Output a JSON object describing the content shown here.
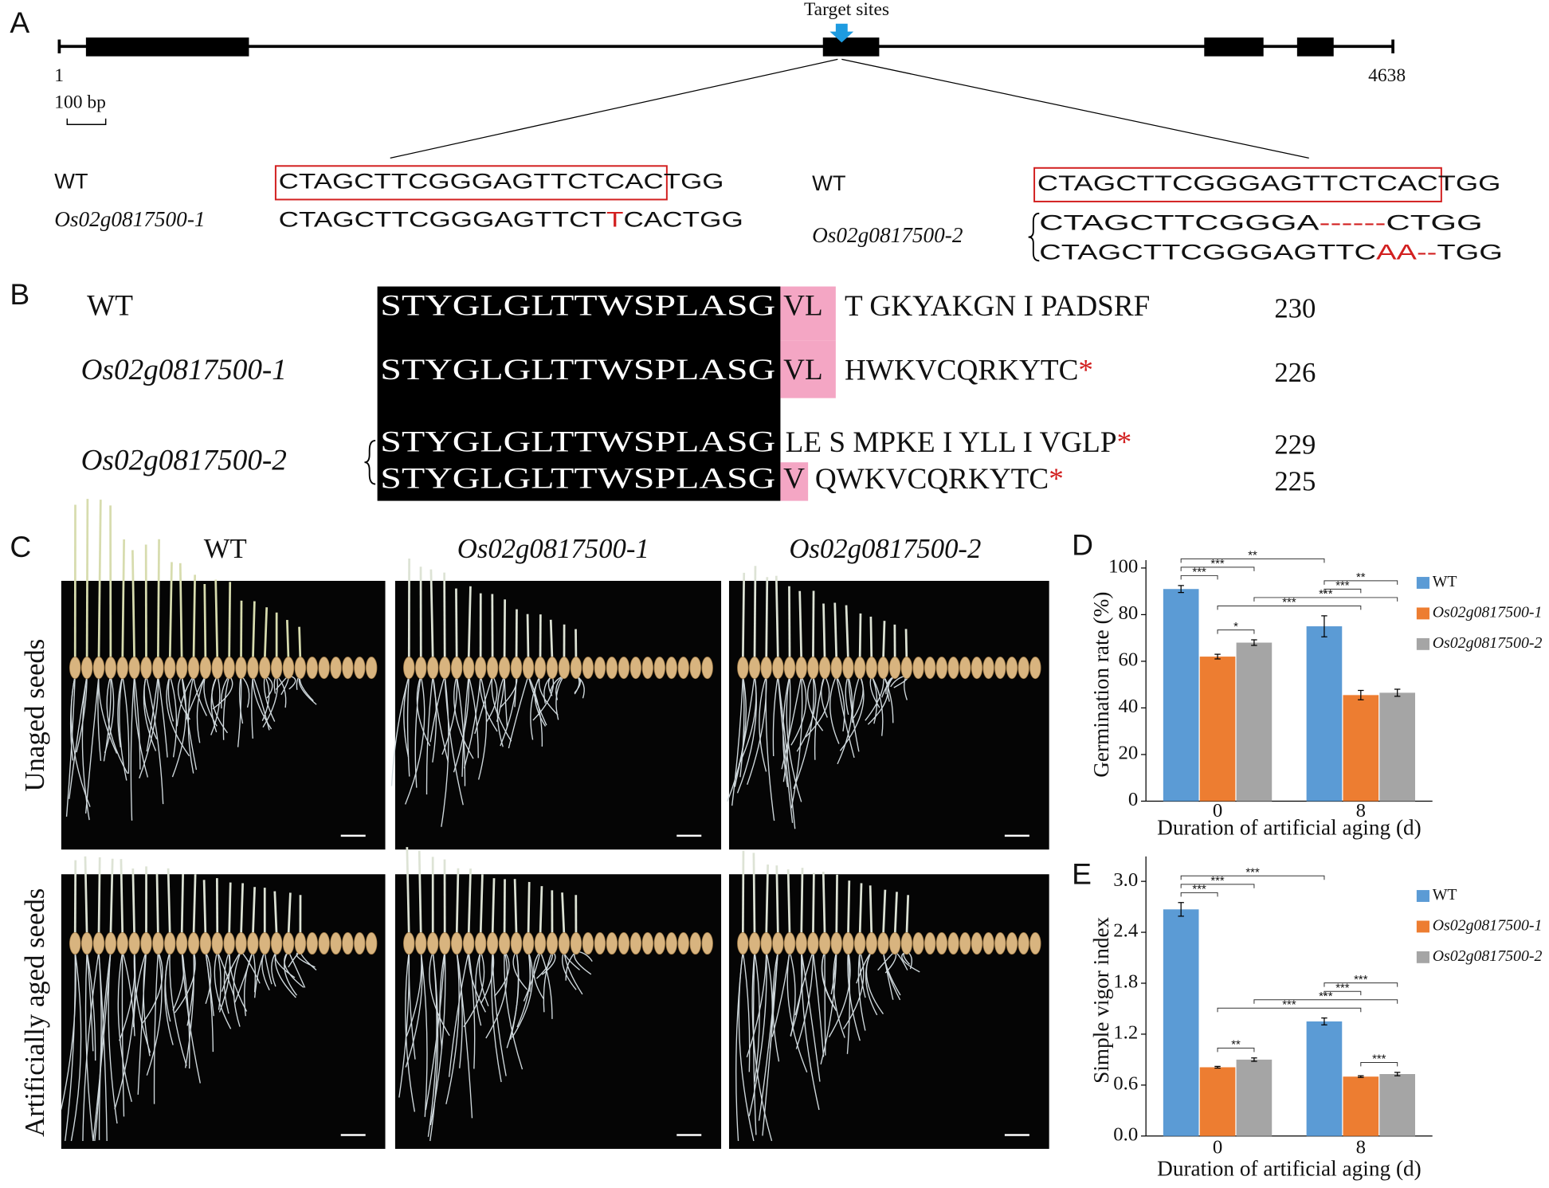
{
  "panel_a": {
    "label": "A",
    "target_label": "Target sites",
    "start": "1",
    "end": "4638",
    "scale": "100 bp",
    "left": {
      "wt_label": "WT",
      "wt_box": "CTAGCTTCGGGAGTTCTCAC",
      "wt_pam": "TGG",
      "mut_label": "Os02g0817500-1",
      "mut_parts": [
        "CTAGCTTCGGGAGTTCT",
        "T",
        "CACTGG"
      ]
    },
    "right": {
      "wt_label": "WT",
      "wt_box": "CTAGCTTCGGGAGTTCTCAC",
      "wt_pam": "TGG",
      "mut_label": "Os02g0817500-2",
      "allele1": [
        "CTAGCTTCGGGA",
        "------",
        "CTGG"
      ],
      "allele2": [
        "CTAGCTTCGGGAGTTC",
        "AA",
        "--",
        "TGG"
      ]
    }
  },
  "panel_b": {
    "label": "B",
    "rows": [
      {
        "name": "WT",
        "seqs": [
          {
            "conserved": "STYGLGLTTWSPLASG",
            "highlight": "VL",
            "rest": "T GKYAKGN I PADSRF",
            "length": 230
          }
        ]
      },
      {
        "name": "Os02g0817500-1",
        "seqs": [
          {
            "conserved": "STYGLGLTTWSPLASG",
            "highlight": "VL",
            "rest": "HWKVCQRKYTC",
            "stop": "*",
            "length": 226
          }
        ]
      },
      {
        "name": "Os02g0817500-2",
        "seqs": [
          {
            "conserved": "STYGLGLTTWSPLASG",
            "rest": "LE S MPKE I YLL I VGLP",
            "stop": "*",
            "length": 229
          },
          {
            "conserved": "STYGLGLTTWSPLASG",
            "highlight": "V",
            "rest": "QWKVCQRKYTC",
            "stop": "*",
            "length": 225
          }
        ]
      }
    ]
  },
  "panel_c": {
    "label": "C",
    "columns": [
      "WT",
      "Os02g0817500-1",
      "Os02g0817500-2"
    ],
    "rows": [
      "Unaged seeds",
      "Artificially aged seeds"
    ]
  },
  "chart_data": [
    {
      "type": "bar",
      "panel_label": "D",
      "x_label": "Duration of artificial aging (d)",
      "y_label": "Germination rate (%)",
      "categories": [
        "0",
        "8"
      ],
      "series": [
        {
          "name": "WT",
          "color": "#5b9bd5",
          "values": [
            91,
            75
          ],
          "errors": [
            1.5,
            4.5
          ]
        },
        {
          "name": "Os02g0817500-1",
          "color": "#ed7d31",
          "values": [
            62,
            45.5
          ],
          "errors": [
            1,
            2
          ]
        },
        {
          "name": "Os02g0817500-2",
          "color": "#a5a5a5",
          "values": [
            68,
            46.5
          ],
          "errors": [
            1.2,
            1.5
          ]
        }
      ],
      "ylim": [
        0,
        100
      ],
      "yticks": [
        0,
        20,
        40,
        60,
        80,
        100
      ],
      "significance": [
        {
          "label": "***",
          "bars": [
            [
              0,
              0
            ],
            [
              0,
              1
            ]
          ]
        },
        {
          "label": "*",
          "bars": [
            [
              0,
              1
            ],
            [
              0,
              2
            ]
          ]
        },
        {
          "label": "***",
          "bars": [
            [
              0,
              0
            ],
            [
              0,
              2
            ]
          ]
        },
        {
          "label": "**",
          "bars": [
            [
              0,
              0
            ],
            [
              1,
              0
            ]
          ]
        },
        {
          "label": "***",
          "bars": [
            [
              0,
              1
            ],
            [
              1,
              1
            ]
          ]
        },
        {
          "label": "***",
          "bars": [
            [
              0,
              2
            ],
            [
              1,
              2
            ]
          ]
        },
        {
          "label": "***",
          "bars": [
            [
              1,
              0
            ],
            [
              1,
              1
            ]
          ]
        },
        {
          "label": "**",
          "bars": [
            [
              1,
              0
            ],
            [
              1,
              2
            ]
          ]
        }
      ]
    },
    {
      "type": "bar",
      "panel_label": "E",
      "x_label": "Duration of artificial aging (d)",
      "y_label": "Simple vigor index",
      "categories": [
        "0",
        "8"
      ],
      "series": [
        {
          "name": "WT",
          "color": "#5b9bd5",
          "values": [
            2.67,
            1.35
          ],
          "errors": [
            0.08,
            0.04
          ]
        },
        {
          "name": "Os02g0817500-1",
          "color": "#ed7d31",
          "values": [
            0.81,
            0.7
          ],
          "errors": [
            0.01,
            0.01
          ]
        },
        {
          "name": "Os02g0817500-2",
          "color": "#a5a5a5",
          "values": [
            0.9,
            0.73
          ],
          "errors": [
            0.02,
            0.02
          ]
        }
      ],
      "ylim": [
        0,
        3.2
      ],
      "yticks": [
        {
          "value": 0,
          "label": "0.0"
        },
        0.6,
        1.2,
        1.8,
        2.4,
        {
          "value": 3,
          "label": "3.0"
        }
      ],
      "significance": [
        {
          "label": "***",
          "bars": [
            [
              0,
              0
            ],
            [
              0,
              1
            ]
          ]
        },
        {
          "label": "**",
          "bars": [
            [
              0,
              1
            ],
            [
              0,
              2
            ]
          ]
        },
        {
          "label": "***",
          "bars": [
            [
              0,
              0
            ],
            [
              0,
              2
            ]
          ]
        },
        {
          "label": "***",
          "bars": [
            [
              0,
              0
            ],
            [
              1,
              0
            ]
          ]
        },
        {
          "label": "***",
          "bars": [
            [
              0,
              1
            ],
            [
              1,
              1
            ]
          ]
        },
        {
          "label": "***",
          "bars": [
            [
              0,
              2
            ],
            [
              1,
              2
            ]
          ]
        },
        {
          "label": "***",
          "bars": [
            [
              1,
              0
            ],
            [
              1,
              1
            ]
          ]
        },
        {
          "label": "***",
          "bars": [
            [
              1,
              1
            ],
            [
              1,
              2
            ]
          ]
        },
        {
          "label": "***",
          "bars": [
            [
              1,
              0
            ],
            [
              1,
              2
            ]
          ]
        }
      ]
    }
  ]
}
